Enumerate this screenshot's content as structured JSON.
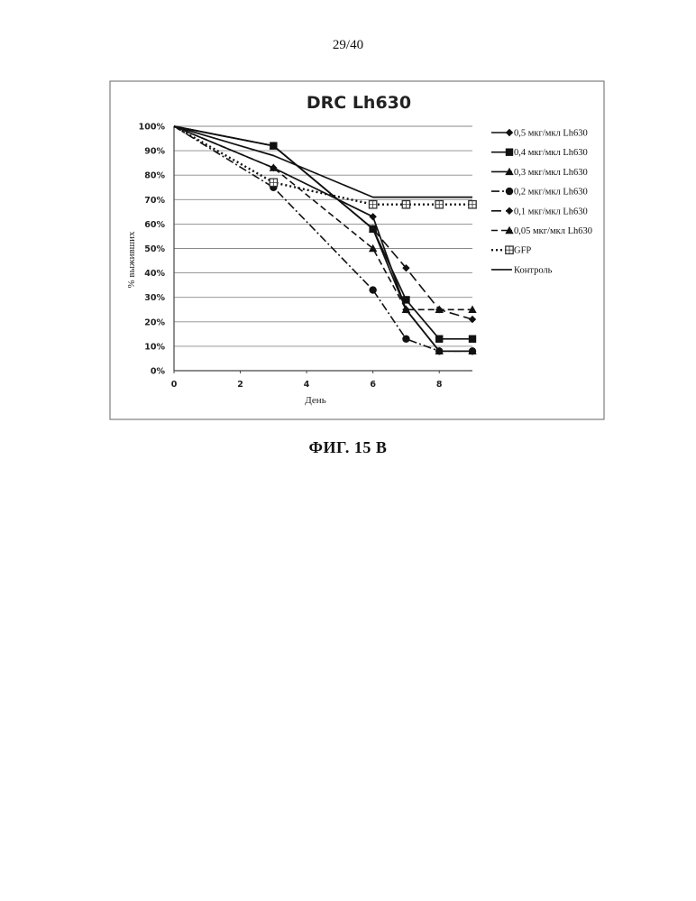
{
  "page": {
    "number": "29/40"
  },
  "figure": {
    "caption": "ФИГ. 15 В"
  },
  "chart_data": {
    "type": "line",
    "title": "DRC Lh630",
    "xlabel": "День",
    "ylabel": "% выживших",
    "xlim": [
      0,
      9
    ],
    "ylim": [
      0,
      100
    ],
    "x_ticks": [
      0,
      2,
      4,
      6,
      8
    ],
    "y_ticks": [
      0,
      10,
      20,
      30,
      40,
      50,
      60,
      70,
      80,
      90,
      100
    ],
    "y_tick_format": "percent",
    "grid": "horizontal",
    "legend_position": "right",
    "series": [
      {
        "name": "0,5 мкг/мкл Lh630",
        "marker": "diamond",
        "dash": "solid",
        "x": [
          0,
          3,
          6,
          7,
          8,
          9
        ],
        "y": [
          100,
          83,
          63,
          25,
          8,
          8
        ]
      },
      {
        "name": "0,4 мкг/мкл Lh630",
        "marker": "square",
        "dash": "solid",
        "x": [
          0,
          3,
          6,
          7,
          8,
          9
        ],
        "y": [
          100,
          92,
          58,
          29,
          13,
          13
        ]
      },
      {
        "name": "0,3 мкг/мкл Lh630",
        "marker": "triangle",
        "dash": "solid",
        "x": [
          0,
          3,
          6,
          7,
          8,
          9
        ],
        "y": [
          100,
          92,
          58,
          25,
          8,
          8
        ]
      },
      {
        "name": "0,2 мкг/мкл Lh630",
        "marker": "circle",
        "dash": "dashdot",
        "x": [
          0,
          3,
          6,
          7,
          8,
          9
        ],
        "y": [
          100,
          75,
          33,
          13,
          8,
          8
        ]
      },
      {
        "name": "0,1 мкг/мкл Lh630",
        "marker": "diamond",
        "dash": "longdash",
        "x": [
          0,
          3,
          6,
          7,
          8,
          9
        ],
        "y": [
          100,
          92,
          58,
          42,
          25,
          21
        ]
      },
      {
        "name": "0,05 мкг/мкл Lh630",
        "marker": "triangle",
        "dash": "dash",
        "x": [
          0,
          3,
          6,
          7,
          8,
          9
        ],
        "y": [
          100,
          83,
          50,
          25,
          25,
          25
        ]
      },
      {
        "name": "GFP",
        "marker": "open-square",
        "dash": "dotted",
        "x": [
          0,
          3,
          6,
          7,
          8,
          9
        ],
        "y": [
          100,
          77,
          68,
          68,
          68,
          68
        ]
      },
      {
        "name": "Контроль",
        "marker": "none",
        "dash": "solid",
        "x": [
          0,
          3,
          6,
          7,
          8,
          9
        ],
        "y": [
          100,
          88,
          71,
          71,
          71,
          71
        ]
      }
    ]
  }
}
